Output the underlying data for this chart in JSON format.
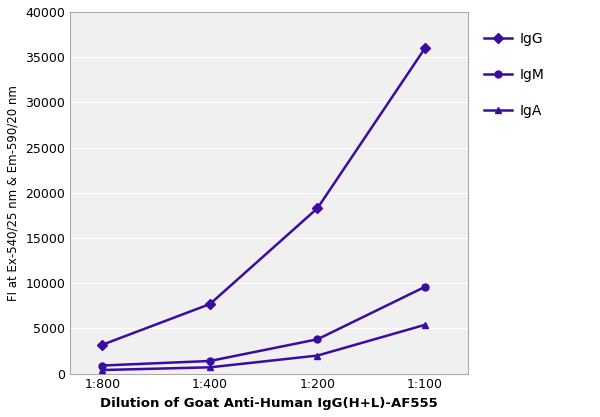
{
  "x_labels": [
    "1:800",
    "1:400",
    "1:200",
    "1:100"
  ],
  "x_positions": [
    0,
    1,
    2,
    3
  ],
  "IgG": [
    3200,
    7700,
    18300,
    36000
  ],
  "IgM": [
    900,
    1400,
    3800,
    9600
  ],
  "IgA": [
    400,
    700,
    2000,
    5400
  ],
  "color": "#3a0ca3",
  "ylim": [
    0,
    40000
  ],
  "yticks": [
    0,
    5000,
    10000,
    15000,
    20000,
    25000,
    30000,
    35000,
    40000
  ],
  "ylabel": "FI at Ex-540/25 nm & Em-590/20 nm",
  "xlabel": "Dilution of Goat Anti-Human IgG(H+L)-AF555",
  "legend_labels": [
    "IgG",
    "IgM",
    "IgA"
  ],
  "plot_bg": "#f0f0f0",
  "fig_bg": "#ffffff",
  "grid_color": "#ffffff",
  "spine_color": "#aaaaaa",
  "tick_label_size": 9,
  "ylabel_size": 8.5,
  "xlabel_size": 9.5
}
